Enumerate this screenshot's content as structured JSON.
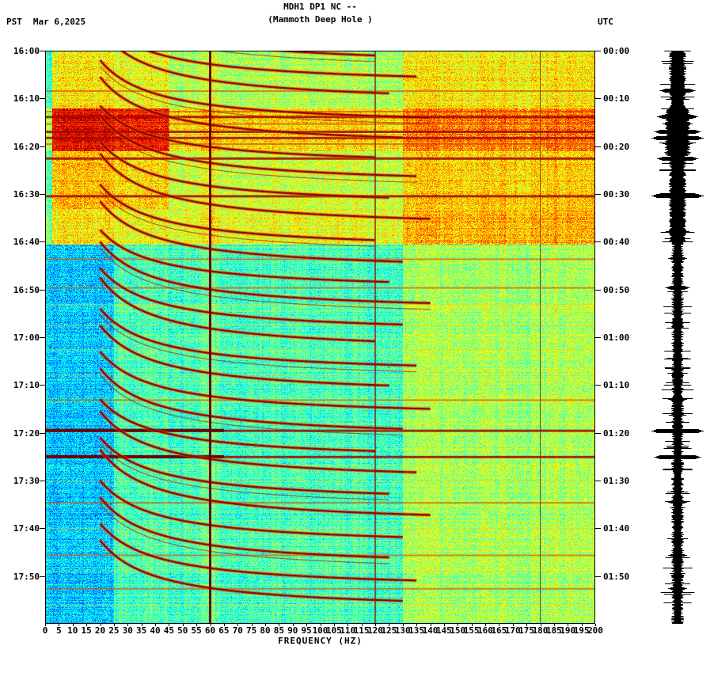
{
  "header": {
    "title_line1": "MDH1 DP1 NC --",
    "title_line2": "(Mammoth Deep Hole )",
    "left_tz": "PST",
    "date": "Mar 6,2025",
    "right_tz": "UTC"
  },
  "axes": {
    "left_times": [
      "16:00",
      "16:10",
      "16:20",
      "16:30",
      "16:40",
      "16:50",
      "17:00",
      "17:10",
      "17:20",
      "17:30",
      "17:40",
      "17:50"
    ],
    "right_times": [
      "00:00",
      "00:10",
      "00:20",
      "00:30",
      "00:40",
      "00:50",
      "01:00",
      "01:10",
      "01:20",
      "01:30",
      "01:40",
      "01:50"
    ],
    "freq_ticks": [
      0,
      5,
      10,
      15,
      20,
      25,
      30,
      35,
      40,
      45,
      50,
      55,
      60,
      65,
      70,
      75,
      80,
      85,
      90,
      95,
      100,
      105,
      110,
      115,
      120,
      125,
      130,
      135,
      140,
      145,
      150,
      155,
      160,
      165,
      170,
      175,
      180,
      185,
      190,
      195,
      200
    ],
    "xlabel": "FREQUENCY (HZ)"
  },
  "chart_data": {
    "type": "heatmap",
    "subtype": "seismic-spectrogram-with-helicorder",
    "station": "MDH1 DP1 NC",
    "station_name": "Mammoth Deep Hole",
    "date": "Mar 6,2025",
    "title": "MDH1 DP1 NC -- (Mammoth Deep Hole )",
    "xlabel": "FREQUENCY (HZ)",
    "freq_range_hz": [
      0,
      200
    ],
    "time_start_pst": "16:00",
    "time_end_pst": "18:00",
    "time_start_utc": "00:00",
    "time_end_utc": "02:00",
    "time_span_min": 120,
    "colormap": "jet",
    "powerline_hz": [
      60,
      120,
      180
    ],
    "glissando_f0_hz": 20,
    "glissandos": [
      {
        "t": 3.5,
        "T": 15,
        "fmax": 120
      },
      {
        "t": 7.5,
        "T": 14,
        "fmax": 135
      },
      {
        "t": 11.5,
        "T": 16,
        "fmax": 125
      },
      {
        "t": 16.0,
        "T": 14,
        "fmax": 140
      },
      {
        "t": 20.5,
        "T": 15,
        "fmax": 130
      },
      {
        "t": 24.5,
        "T": 13,
        "fmax": 120
      },
      {
        "t": 28.5,
        "T": 15,
        "fmax": 135
      },
      {
        "t": 33.0,
        "T": 14,
        "fmax": 125
      },
      {
        "t": 37.5,
        "T": 16,
        "fmax": 140
      },
      {
        "t": 42.0,
        "T": 14,
        "fmax": 120
      },
      {
        "t": 46.5,
        "T": 15,
        "fmax": 130
      },
      {
        "t": 50.5,
        "T": 13,
        "fmax": 125
      },
      {
        "t": 55.0,
        "T": 15,
        "fmax": 140
      },
      {
        "t": 59.5,
        "T": 14,
        "fmax": 130
      },
      {
        "t": 63.5,
        "T": 16,
        "fmax": 120
      },
      {
        "t": 68.0,
        "T": 14,
        "fmax": 135
      },
      {
        "t": 72.5,
        "T": 15,
        "fmax": 125
      },
      {
        "t": 77.0,
        "T": 14,
        "fmax": 140
      },
      {
        "t": 81.5,
        "T": 15,
        "fmax": 130
      },
      {
        "t": 86.0,
        "T": 13,
        "fmax": 120
      },
      {
        "t": 90.5,
        "T": 15,
        "fmax": 135
      },
      {
        "t": 95.0,
        "T": 14,
        "fmax": 125
      },
      {
        "t": 99.5,
        "T": 16,
        "fmax": 140
      },
      {
        "t": 104.0,
        "T": 14,
        "fmax": 130
      },
      {
        "t": 108.5,
        "T": 15,
        "fmax": 125
      },
      {
        "t": 113.0,
        "T": 14,
        "fmax": 135
      },
      {
        "t": 117.5,
        "T": 15,
        "fmax": 130
      }
    ],
    "broadband_events_min": [
      {
        "t": 4.2,
        "s": 0.5
      },
      {
        "t": 8.3,
        "s": 0.85
      },
      {
        "t": 10.1,
        "s": 0.5
      },
      {
        "t": 12.6,
        "s": 0.7
      },
      {
        "t": 13.8,
        "s": 0.9
      },
      {
        "t": 15.2,
        "s": 0.8
      },
      {
        "t": 16.9,
        "s": 0.95
      },
      {
        "t": 18.2,
        "s": 1.0
      },
      {
        "t": 19.4,
        "s": 0.8
      },
      {
        "t": 22.5,
        "s": 0.9
      },
      {
        "t": 26.0,
        "s": 0.5
      },
      {
        "t": 30.4,
        "s": 1.0
      },
      {
        "t": 33.2,
        "s": 0.6
      },
      {
        "t": 36.5,
        "s": 0.5
      },
      {
        "t": 38.0,
        "s": 0.6
      },
      {
        "t": 43.5,
        "s": 0.7
      },
      {
        "t": 49.5,
        "s": 0.75
      },
      {
        "t": 53.0,
        "s": 0.5
      },
      {
        "t": 57.5,
        "s": 0.45
      },
      {
        "t": 62.5,
        "s": 0.6
      },
      {
        "t": 68.0,
        "s": 0.5
      },
      {
        "t": 73.0,
        "s": 0.7
      },
      {
        "t": 79.5,
        "s": 1.0,
        "lowbar": true
      },
      {
        "t": 85.0,
        "s": 0.95,
        "lowbar": true
      },
      {
        "t": 90.0,
        "s": 0.5
      },
      {
        "t": 94.5,
        "s": 0.7
      },
      {
        "t": 100.0,
        "s": 0.5
      },
      {
        "t": 105.5,
        "s": 0.7
      },
      {
        "t": 109.0,
        "s": 0.5
      },
      {
        "t": 112.5,
        "s": 0.7
      },
      {
        "t": 116.0,
        "s": 0.5
      }
    ],
    "energy_bands": [
      {
        "t0": 0,
        "t1": 12,
        "all": 0.1,
        "low": 0.06,
        "low_f0": 2.5,
        "low_f1": 45
      },
      {
        "t0": 12,
        "t1": 21,
        "all": 0.22,
        "low": 0.2,
        "low_f0": 2.5,
        "low_f1": 45
      },
      {
        "t0": 21,
        "t1": 33,
        "all": 0.13,
        "low": 0.08,
        "low_f0": 2.5,
        "low_f1": 45
      },
      {
        "t0": 33,
        "t1": 40.5,
        "all": 0.16,
        "low": 0.0,
        "low_f0": 2.5,
        "low_f1": 45
      },
      {
        "t0": 40.5,
        "t1": 120,
        "all": 0.0,
        "low": -0.16,
        "low_f0": 2.5,
        "low_f1": 25
      }
    ],
    "colors": {
      "line_60hz": "#6f0000",
      "line_120hz": "#8c1400",
      "line_180hz": "#992200",
      "arc_core": "#8b0000",
      "trace": "#000000",
      "text": "#000000",
      "background": "#ffffff"
    }
  }
}
